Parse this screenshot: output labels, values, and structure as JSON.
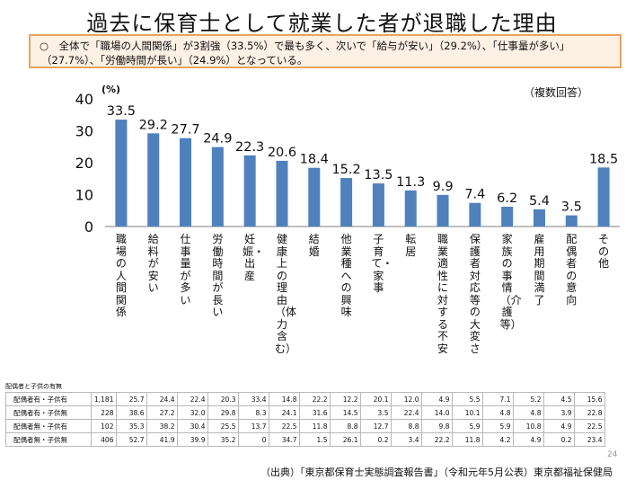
{
  "title": "過去に保育士として就業した者が退職した理由",
  "summary_line1": "○　全体で「職場の人間関係」が3割強（33.5%）で最も多く、次いで「給与が安い」（29.2%）、「仕事量が多い」",
  "summary_line2": "（27.7%）、「労働時間が長い」（24.9%）となっている。",
  "unit_label": "(%)",
  "note": "（複数回答）",
  "colors": {
    "bar": "#4f81bd",
    "summary_bg": "#fdf0e4",
    "summary_border": "#e9a35f"
  },
  "chart_data": {
    "type": "bar",
    "categories": [
      "職場の人間関係",
      "給料が安い",
      "仕事量が多い",
      "労働時間が長い",
      "妊娠・出産",
      "健康上の理由（体力含む）",
      "結婚",
      "他業種への興味",
      "子育て・家事",
      "転居",
      "職業適性に対する不安",
      "保護者対応等の大変さ",
      "家族の事情（介護等）",
      "雇用期間満了",
      "配偶者の意向",
      "その他"
    ],
    "values": [
      33.5,
      29.2,
      27.7,
      24.9,
      22.3,
      20.6,
      18.4,
      15.2,
      13.5,
      11.3,
      9.9,
      7.4,
      6.2,
      5.4,
      3.5,
      18.5
    ],
    "value_labels": [
      "33.5",
      "29.2",
      "27.7",
      "24.9",
      "22.3",
      "20.6",
      "18.4",
      "15.2",
      "13.5",
      "11.3",
      "9.9",
      "7.4",
      "6.2",
      "5.4",
      "3.5",
      "18.5"
    ],
    "ylim": [
      0,
      40
    ],
    "yticks": [
      "0",
      "10",
      "20",
      "30",
      "40"
    ],
    "grid": false
  },
  "table": {
    "header": "配偶者と子供の有無",
    "rows": [
      {
        "label": "配偶者有・子供有",
        "n": "1,181",
        "values": [
          "25.7",
          "24.4",
          "22.4",
          "20.3",
          "33.4",
          "14.8",
          "22.2",
          "12.2",
          "20.1",
          "12.0",
          "4.9",
          "5.5",
          "7.1",
          "5.2",
          "4.5",
          "15.6"
        ]
      },
      {
        "label": "配偶者有・子供無",
        "n": "228",
        "values": [
          "38.6",
          "27.2",
          "32.0",
          "29.8",
          "8.3",
          "24.1",
          "31.6",
          "14.5",
          "3.5",
          "22.4",
          "14.0",
          "10.1",
          "4.8",
          "4.8",
          "3.9",
          "22.8"
        ]
      },
      {
        "label": "配偶者無・子供有",
        "n": "102",
        "values": [
          "35.3",
          "38.2",
          "30.4",
          "25.5",
          "13.7",
          "22.5",
          "11.8",
          "8.8",
          "12.7",
          "8.8",
          "9.8",
          "5.9",
          "5.9",
          "10.8",
          "4.9",
          "22.5"
        ]
      },
      {
        "label": "配偶者無・子供無",
        "n": "406",
        "values": [
          "52.7",
          "41.9",
          "39.9",
          "35.2",
          "0",
          "34.7",
          "1.5",
          "26.1",
          "0.2",
          "3.4",
          "22.2",
          "11.8",
          "4.2",
          "4.9",
          "0.2",
          "23.4"
        ]
      }
    ]
  },
  "page_number": "24",
  "source": "（出典）「東京都保育士実態調査報告書」（令和元年5月公表）東京都福祉保健局"
}
